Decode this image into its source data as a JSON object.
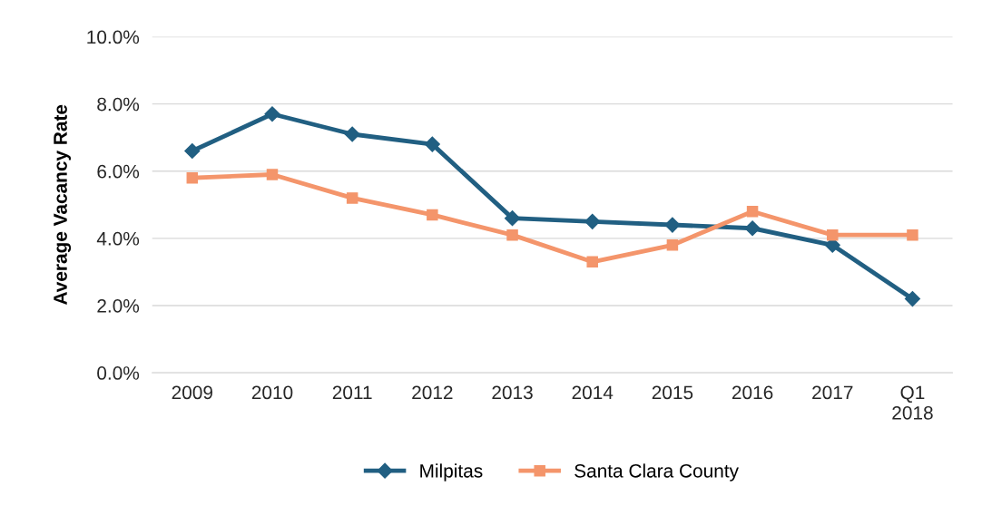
{
  "chart_data": {
    "type": "line",
    "ylabel": "Average Vacancy Rate",
    "categories": [
      "2009",
      "2010",
      "2011",
      "2012",
      "2013",
      "2014",
      "2015",
      "2016",
      "2017",
      "Q1\n2018"
    ],
    "series": [
      {
        "name": "Milpitas",
        "color": "#215f82",
        "marker": "diamond",
        "values": [
          6.6,
          7.7,
          7.1,
          6.8,
          4.6,
          4.5,
          4.4,
          4.3,
          3.8,
          2.2
        ]
      },
      {
        "name": "Santa Clara County",
        "color": "#f4956b",
        "marker": "square",
        "values": [
          5.8,
          5.9,
          5.2,
          4.7,
          4.1,
          3.3,
          3.8,
          4.8,
          4.1,
          4.1
        ]
      }
    ],
    "ylim": [
      0,
      10
    ],
    "yticks": [
      {
        "value": 0,
        "label": "0.0%"
      },
      {
        "value": 2,
        "label": "2.0%"
      },
      {
        "value": 4,
        "label": "4.0%"
      },
      {
        "value": 6,
        "label": "6.0%"
      },
      {
        "value": 8,
        "label": "8.0%"
      },
      {
        "value": 10,
        "label": "10.0%"
      }
    ],
    "grid": "y",
    "legend": "bottom",
    "line_style": "solid"
  }
}
